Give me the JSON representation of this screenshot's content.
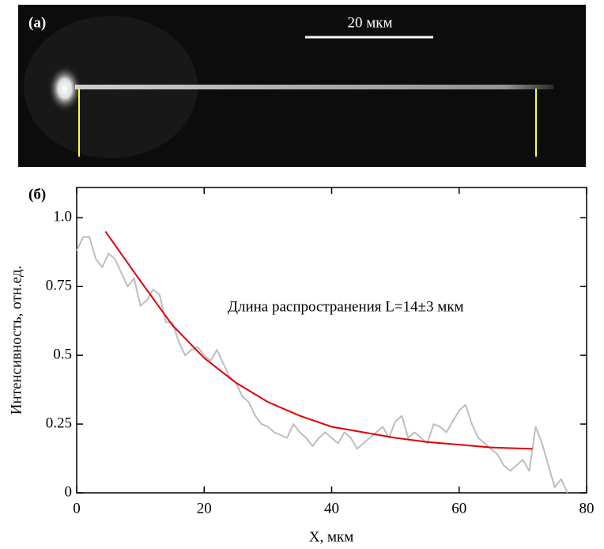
{
  "panel_a": {
    "label": "(а)",
    "scale_bar": "20 мкм"
  },
  "chart_data": {
    "type": "line",
    "panel_label": "(б)",
    "x_label": "X, мкм",
    "y_label": "Интенсивность, отн.ед.",
    "annotation": "Длина распространения L=14±3 мкм",
    "xlim": [
      0,
      80
    ],
    "xticks": [
      0,
      20,
      40,
      60,
      80
    ],
    "ylim": [
      0,
      1.11
    ],
    "yticks": [
      0,
      0.25,
      0.5,
      0.75,
      {
        "value": 1,
        "label": "1.0"
      }
    ],
    "series": [
      {
        "color": "#bdbdbd",
        "x": [
          0,
          1,
          2,
          3,
          4,
          5,
          6,
          7,
          8,
          9,
          10,
          11,
          12,
          13,
          14,
          15,
          16,
          17,
          18,
          19,
          20,
          21,
          22,
          23,
          24,
          25,
          26,
          27,
          28,
          29,
          30,
          31,
          32,
          33,
          34,
          35,
          36,
          37,
          38,
          39,
          40,
          41,
          42,
          43,
          44,
          45,
          46,
          47,
          48,
          49,
          50,
          51,
          52,
          53,
          54,
          55,
          56,
          57,
          58,
          59,
          60,
          61,
          62,
          63,
          64,
          65,
          66,
          67,
          68,
          69,
          70,
          71,
          72,
          73,
          74,
          75,
          76,
          77
        ],
        "values": [
          0.88,
          0.93,
          0.93,
          0.85,
          0.82,
          0.87,
          0.85,
          0.8,
          0.75,
          0.78,
          0.68,
          0.7,
          0.74,
          0.72,
          0.62,
          0.62,
          0.55,
          0.5,
          0.52,
          0.53,
          0.5,
          0.48,
          0.52,
          0.47,
          0.42,
          0.4,
          0.35,
          0.33,
          0.28,
          0.25,
          0.24,
          0.22,
          0.21,
          0.2,
          0.25,
          0.22,
          0.2,
          0.17,
          0.2,
          0.22,
          0.2,
          0.18,
          0.22,
          0.2,
          0.16,
          0.18,
          0.2,
          0.22,
          0.24,
          0.2,
          0.26,
          0.28,
          0.2,
          0.22,
          0.2,
          0.18,
          0.25,
          0.24,
          0.22,
          0.26,
          0.3,
          0.32,
          0.25,
          0.2,
          0.18,
          0.16,
          0.14,
          0.1,
          0.08,
          0.1,
          0.12,
          0.08,
          0.24,
          0.18,
          0.1,
          0.02,
          0.05,
          0
        ]
      },
      {
        "color": "#e00000",
        "x": [
          4.5,
          10,
          15,
          20,
          25,
          30,
          35,
          40,
          45,
          50,
          55,
          60,
          65,
          71.5
        ],
        "values": [
          0.95,
          0.77,
          0.61,
          0.49,
          0.4,
          0.33,
          0.28,
          0.24,
          0.22,
          0.2,
          0.185,
          0.175,
          0.165,
          0.16
        ]
      }
    ]
  }
}
